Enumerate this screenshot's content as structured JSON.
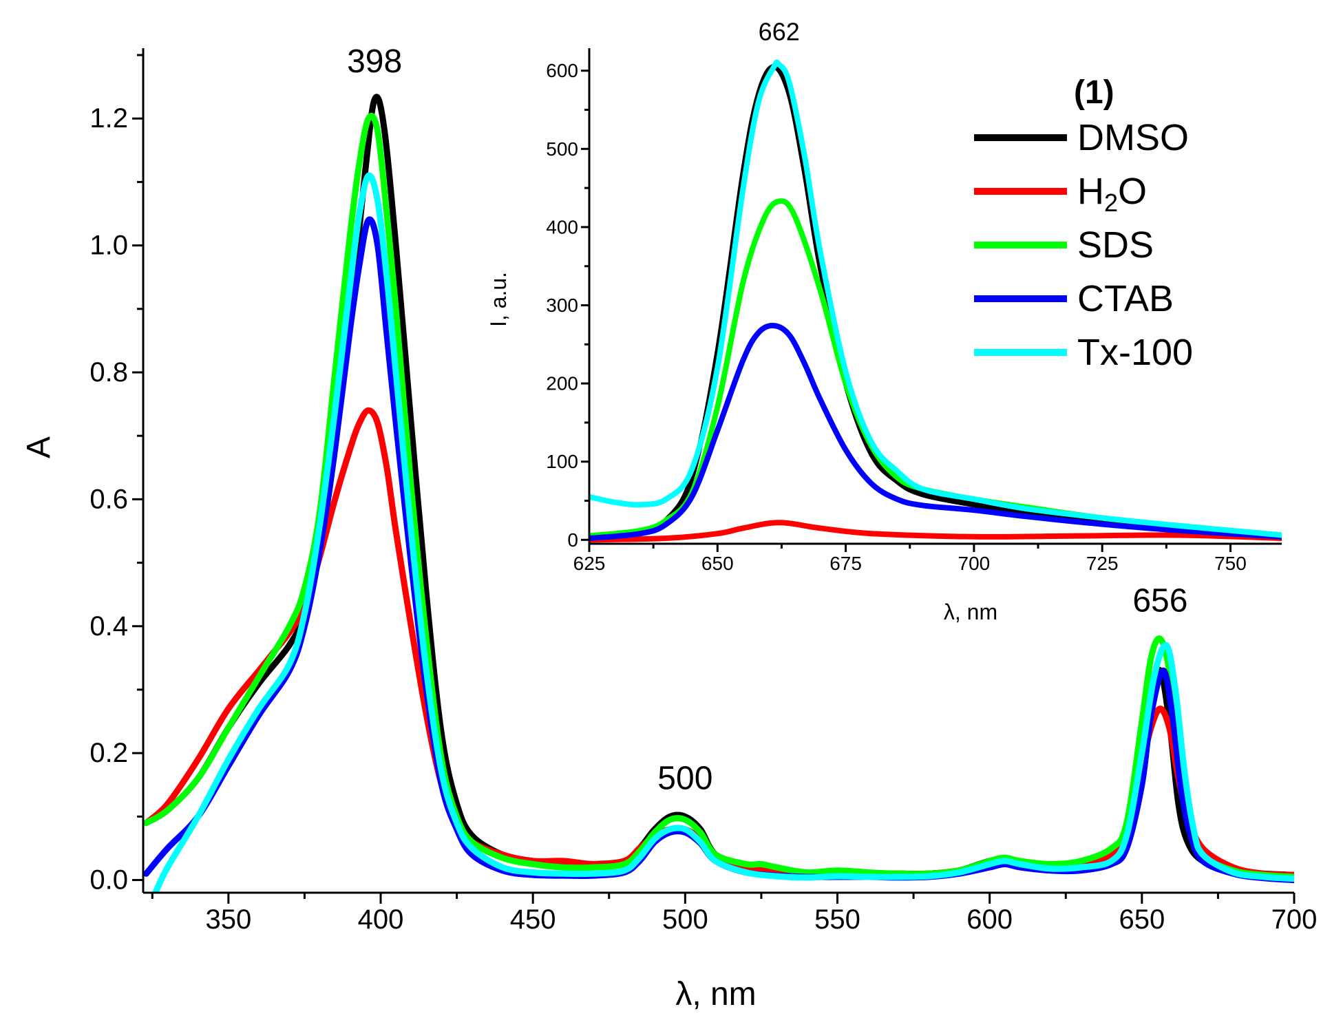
{
  "chart_data": [
    {
      "type": "line",
      "title": "",
      "xlabel": "λ, nm",
      "ylabel": "A",
      "xlim": [
        322,
        700
      ],
      "ylim": [
        -0.02,
        1.3
      ],
      "x_ticks": [
        350,
        400,
        450,
        500,
        550,
        600,
        650,
        700
      ],
      "x_tick_labels": [
        "350",
        "400",
        "450",
        "500",
        "550",
        "600",
        "650",
        "700"
      ],
      "y_ticks": [
        0.0,
        0.2,
        0.4,
        0.6,
        0.8,
        1.0,
        1.2
      ],
      "y_tick_labels": [
        "0.0",
        "0.2",
        "0.4",
        "0.6",
        "0.8",
        "1.0",
        "1.2"
      ],
      "annotations": [
        {
          "text": "398",
          "x": 398,
          "y": 1.26
        },
        {
          "text": "500",
          "x": 500,
          "y": 0.13
        },
        {
          "text": "656",
          "x": 656,
          "y": 0.41
        }
      ],
      "series": [
        {
          "name": "DMSO",
          "color": "#000000",
          "x": [
            323,
            330,
            340,
            350,
            360,
            370,
            375,
            380,
            385,
            390,
            395,
            398,
            401,
            405,
            410,
            415,
            420,
            425,
            430,
            440,
            450,
            460,
            470,
            480,
            485,
            490,
            495,
            500,
            505,
            510,
            520,
            530,
            540,
            550,
            560,
            570,
            580,
            590,
            600,
            605,
            610,
            620,
            630,
            640,
            645,
            650,
            653,
            656,
            659,
            662,
            665,
            670,
            680,
            690,
            700
          ],
          "y": [
            0.09,
            0.11,
            0.16,
            0.24,
            0.31,
            0.37,
            0.42,
            0.52,
            0.68,
            0.89,
            1.12,
            1.23,
            1.19,
            1.0,
            0.72,
            0.45,
            0.23,
            0.12,
            0.07,
            0.04,
            0.03,
            0.025,
            0.025,
            0.03,
            0.05,
            0.08,
            0.1,
            0.1,
            0.08,
            0.04,
            0.02,
            0.015,
            0.01,
            0.01,
            0.01,
            0.01,
            0.01,
            0.015,
            0.03,
            0.03,
            0.025,
            0.02,
            0.025,
            0.04,
            0.08,
            0.2,
            0.29,
            0.33,
            0.25,
            0.12,
            0.06,
            0.03,
            0.015,
            0.01,
            0.008
          ]
        },
        {
          "name": "H2O",
          "color": "#ff0000",
          "x": [
            323,
            330,
            340,
            350,
            360,
            365,
            370,
            375,
            380,
            385,
            390,
            393,
            396,
            399,
            402,
            405,
            410,
            415,
            420,
            425,
            430,
            440,
            450,
            460,
            470,
            480,
            485,
            490,
            495,
            500,
            505,
            510,
            520,
            530,
            540,
            550,
            560,
            570,
            580,
            590,
            600,
            605,
            610,
            620,
            630,
            640,
            645,
            650,
            653,
            656,
            659,
            662,
            665,
            670,
            680,
            690,
            700
          ],
          "y": [
            0.09,
            0.12,
            0.19,
            0.27,
            0.33,
            0.36,
            0.39,
            0.43,
            0.51,
            0.6,
            0.68,
            0.72,
            0.74,
            0.72,
            0.65,
            0.55,
            0.4,
            0.26,
            0.15,
            0.09,
            0.06,
            0.04,
            0.03,
            0.03,
            0.025,
            0.03,
            0.05,
            0.07,
            0.08,
            0.08,
            0.065,
            0.04,
            0.02,
            0.015,
            0.01,
            0.01,
            0.01,
            0.01,
            0.01,
            0.015,
            0.025,
            0.03,
            0.025,
            0.02,
            0.025,
            0.04,
            0.08,
            0.18,
            0.24,
            0.27,
            0.24,
            0.16,
            0.1,
            0.05,
            0.02,
            0.01,
            0.008
          ]
        },
        {
          "name": "SDS",
          "color": "#00ff00",
          "x": [
            323,
            330,
            340,
            350,
            360,
            370,
            375,
            380,
            385,
            390,
            393,
            396,
            399,
            402,
            405,
            410,
            415,
            420,
            425,
            430,
            440,
            450,
            460,
            470,
            480,
            485,
            490,
            495,
            500,
            505,
            510,
            520,
            525,
            530,
            540,
            550,
            560,
            570,
            580,
            590,
            600,
            605,
            610,
            620,
            630,
            640,
            645,
            650,
            653,
            656,
            659,
            662,
            665,
            670,
            680,
            690,
            700
          ],
          "y": [
            0.09,
            0.11,
            0.16,
            0.24,
            0.32,
            0.4,
            0.46,
            0.58,
            0.8,
            1.02,
            1.13,
            1.2,
            1.18,
            1.05,
            0.9,
            0.62,
            0.38,
            0.19,
            0.1,
            0.06,
            0.035,
            0.025,
            0.02,
            0.02,
            0.025,
            0.045,
            0.075,
            0.095,
            0.095,
            0.075,
            0.04,
            0.025,
            0.025,
            0.02,
            0.012,
            0.015,
            0.012,
            0.01,
            0.01,
            0.015,
            0.03,
            0.035,
            0.03,
            0.025,
            0.03,
            0.05,
            0.09,
            0.25,
            0.35,
            0.38,
            0.33,
            0.2,
            0.1,
            0.04,
            0.015,
            0.008,
            0.005
          ]
        },
        {
          "name": "CTAB",
          "color": "#0000ff",
          "x": [
            323,
            330,
            340,
            350,
            360,
            370,
            375,
            380,
            385,
            390,
            393,
            396,
            399,
            402,
            405,
            410,
            415,
            420,
            425,
            430,
            440,
            450,
            460,
            470,
            480,
            485,
            490,
            495,
            500,
            505,
            510,
            520,
            530,
            540,
            550,
            560,
            570,
            580,
            590,
            600,
            605,
            610,
            620,
            630,
            640,
            645,
            650,
            653,
            657,
            660,
            663,
            666,
            670,
            680,
            690,
            700
          ],
          "y": [
            0.01,
            0.05,
            0.1,
            0.18,
            0.26,
            0.33,
            0.4,
            0.52,
            0.68,
            0.87,
            0.97,
            1.04,
            1.0,
            0.86,
            0.72,
            0.5,
            0.3,
            0.15,
            0.08,
            0.04,
            0.015,
            0.008,
            0.007,
            0.007,
            0.012,
            0.03,
            0.06,
            0.075,
            0.075,
            0.058,
            0.03,
            0.012,
            0.007,
            0.005,
            0.005,
            0.005,
            0.004,
            0.005,
            0.01,
            0.02,
            0.025,
            0.02,
            0.015,
            0.015,
            0.025,
            0.05,
            0.15,
            0.26,
            0.33,
            0.26,
            0.14,
            0.07,
            0.03,
            0.01,
            0.003,
            0.0
          ]
        },
        {
          "name": "Tx-100",
          "color": "#00ffff",
          "x": [
            326,
            330,
            340,
            350,
            360,
            370,
            375,
            380,
            385,
            390,
            393,
            396,
            399,
            402,
            405,
            410,
            415,
            420,
            425,
            430,
            440,
            450,
            460,
            470,
            480,
            485,
            490,
            495,
            500,
            505,
            510,
            520,
            530,
            540,
            550,
            560,
            570,
            580,
            590,
            600,
            605,
            610,
            620,
            630,
            640,
            645,
            650,
            654,
            658,
            661,
            664,
            667,
            670,
            680,
            690,
            700
          ],
          "y": [
            -0.02,
            0.02,
            0.1,
            0.19,
            0.27,
            0.34,
            0.42,
            0.56,
            0.74,
            0.94,
            1.05,
            1.11,
            1.07,
            0.95,
            0.8,
            0.55,
            0.33,
            0.17,
            0.09,
            0.05,
            0.02,
            0.012,
            0.01,
            0.01,
            0.015,
            0.035,
            0.065,
            0.08,
            0.08,
            0.06,
            0.03,
            0.012,
            0.006,
            0.004,
            0.006,
            0.005,
            0.005,
            0.006,
            0.012,
            0.025,
            0.03,
            0.025,
            0.018,
            0.02,
            0.03,
            0.07,
            0.2,
            0.32,
            0.37,
            0.3,
            0.17,
            0.08,
            0.04,
            0.012,
            0.005,
            0.002
          ]
        }
      ]
    },
    {
      "type": "line",
      "title": "",
      "xlabel": "λ, nm",
      "ylabel": "I, a.u.",
      "xlim": [
        625,
        760
      ],
      "ylim": [
        -5,
        620
      ],
      "x_ticks": [
        625,
        650,
        675,
        700,
        725,
        750
      ],
      "x_tick_labels": [
        "625",
        "650",
        "675",
        "700",
        "725",
        "750"
      ],
      "y_ticks": [
        0,
        100,
        200,
        300,
        400,
        500,
        600
      ],
      "y_tick_labels": [
        "0",
        "100",
        "200",
        "300",
        "400",
        "500",
        "600"
      ],
      "annotations": [
        {
          "text": "662",
          "x": 662,
          "y": 630
        }
      ],
      "series": [
        {
          "name": "DMSO",
          "color": "#000000",
          "x": [
            625,
            635,
            640,
            645,
            650,
            655,
            658,
            661,
            664,
            667,
            670,
            675,
            680,
            685,
            690,
            700,
            710,
            725,
            740,
            760
          ],
          "y": [
            2,
            10,
            25,
            80,
            240,
            470,
            570,
            605,
            570,
            470,
            350,
            200,
            110,
            75,
            58,
            45,
            35,
            22,
            12,
            5
          ]
        },
        {
          "name": "H2O",
          "color": "#ff0000",
          "x": [
            625,
            640,
            650,
            655,
            662,
            670,
            680,
            700,
            720,
            740,
            760
          ],
          "y": [
            0,
            2,
            8,
            15,
            22,
            15,
            8,
            4,
            5,
            6,
            2
          ]
        },
        {
          "name": "SDS",
          "color": "#00ff00",
          "x": [
            625,
            635,
            640,
            645,
            650,
            655,
            659,
            662,
            665,
            670,
            675,
            680,
            685,
            690,
            700,
            710,
            725,
            740,
            760
          ],
          "y": [
            5,
            12,
            25,
            60,
            170,
            330,
            410,
            433,
            415,
            320,
            200,
            120,
            80,
            65,
            52,
            42,
            28,
            18,
            6
          ]
        },
        {
          "name": "CTAB",
          "color": "#0000ff",
          "x": [
            625,
            635,
            640,
            645,
            650,
            655,
            658,
            661,
            664,
            667,
            670,
            675,
            680,
            685,
            690,
            700,
            710,
            725,
            740,
            760
          ],
          "y": [
            2,
            8,
            20,
            55,
            140,
            230,
            265,
            274,
            262,
            225,
            180,
            115,
            72,
            52,
            44,
            38,
            30,
            20,
            12,
            4
          ]
        },
        {
          "name": "Tx-100",
          "color": "#00ffff",
          "x": [
            625,
            630,
            635,
            640,
            645,
            650,
            655,
            658,
            661,
            662,
            664,
            667,
            670,
            675,
            680,
            685,
            690,
            700,
            710,
            725,
            740,
            760
          ],
          "y": [
            55,
            48,
            45,
            52,
            90,
            220,
            450,
            560,
            605,
            608,
            585,
            490,
            370,
            215,
            125,
            88,
            65,
            52,
            40,
            28,
            18,
            6
          ]
        }
      ]
    }
  ],
  "legend": {
    "title": "(1)",
    "items": [
      {
        "label": "DMSO",
        "color": "#000000",
        "sub_base": "",
        "sub_text": "",
        "sub_tail": ""
      },
      {
        "label": "",
        "color": "#ff0000",
        "sub_base": "H",
        "sub_text": "2",
        "sub_tail": "O"
      },
      {
        "label": "SDS",
        "color": "#00ff00",
        "sub_base": "",
        "sub_text": "",
        "sub_tail": ""
      },
      {
        "label": "CTAB",
        "color": "#0000ff",
        "sub_base": "",
        "sub_text": "",
        "sub_tail": ""
      },
      {
        "label": "Tx-100",
        "color": "#00ffff",
        "sub_base": "",
        "sub_text": "",
        "sub_tail": ""
      }
    ]
  }
}
